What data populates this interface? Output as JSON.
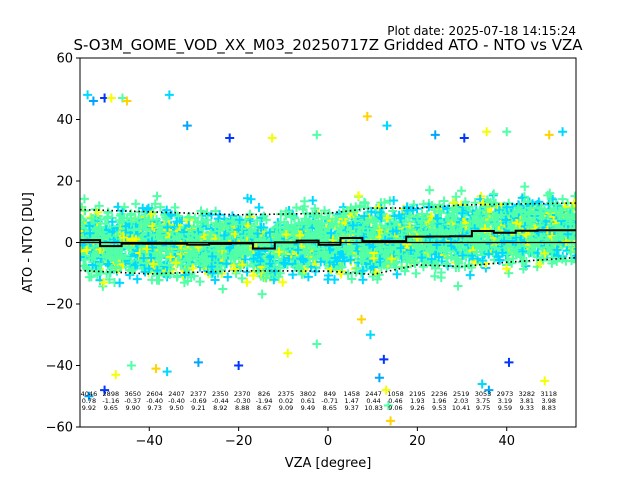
{
  "plot_date": "Plot date: 2025-07-18 14:15:24",
  "chart_data": {
    "type": "scatter",
    "title": "S-O3M_GOME_VOD_XX_M03_20250717Z Gridded ATO - NTO vs VZA",
    "xlabel": "VZA [degree]",
    "ylabel": "ATO - NTO [DU]",
    "xlim": [
      -55.5,
      55.5
    ],
    "ylim": [
      -60,
      60
    ],
    "x_ticks": [
      -40,
      -20,
      0,
      20,
      40
    ],
    "y_ticks": [
      -60,
      -40,
      -20,
      0,
      20,
      40,
      60
    ],
    "grid": false,
    "marker": "+",
    "colors": {
      "light_green": "#52ffa6",
      "cyan": "#00d9ff",
      "yellow": "#f5ff00",
      "gold": "#ffd200",
      "blue": "#0036ff",
      "light_blue": "#00a4ff",
      "mean_line": "#000000",
      "zero_line": "#000000"
    },
    "bins": {
      "centers": [
        -53.5,
        -48.6,
        -43.7,
        -38.8,
        -33.9,
        -29.0,
        -24.1,
        -19.2,
        -14.3,
        -9.4,
        -4.5,
        0.4,
        5.3,
        10.2,
        15.1,
        20.0,
        24.9,
        29.8,
        34.7,
        39.6,
        44.5,
        49.4,
        53.5
      ],
      "counts": [
        "4046",
        "2898",
        "3650",
        "2604",
        "2407",
        "2377",
        "2350",
        "2370",
        "826",
        "2375",
        "3802",
        "849",
        "1458",
        "2447",
        "1058",
        "2195",
        "2236",
        "2519",
        "3053",
        "2973",
        "3282",
        "3118",
        ""
      ],
      "means": [
        "0.78",
        "-1.16",
        "-0.37",
        "-0.40",
        "-0.40",
        "-0.69",
        "-0.44",
        "-0.30",
        "-1.94",
        "0.02",
        "0.61",
        "-0.71",
        "1.47",
        "0.44",
        "0.46",
        "1.93",
        "1.96",
        "2.03",
        "3.75",
        "3.19",
        "3.81",
        "3.98",
        ""
      ],
      "stds": [
        "9.92",
        "9.65",
        "9.90",
        "9.73",
        "9.50",
        "9.21",
        "8.92",
        "8.88",
        "8.67",
        "9.09",
        "9.49",
        "8.65",
        "9.37",
        "10.83",
        "9.06",
        "9.26",
        "9.53",
        "10.41",
        "9.75",
        "9.59",
        "9.33",
        "8.83",
        ""
      ]
    },
    "mean_line": [
      [
        -55.5,
        0.78
      ],
      [
        -51.0,
        0.78
      ],
      [
        -51.0,
        -1.16
      ],
      [
        -46.2,
        -1.16
      ],
      [
        -46.2,
        -0.37
      ],
      [
        -41.3,
        -0.37
      ],
      [
        -41.3,
        -0.4
      ],
      [
        -31.5,
        -0.4
      ],
      [
        -31.5,
        -0.69
      ],
      [
        -26.6,
        -0.69
      ],
      [
        -26.6,
        -0.44
      ],
      [
        -21.7,
        -0.44
      ],
      [
        -21.7,
        -0.3
      ],
      [
        -16.8,
        -0.3
      ],
      [
        -16.8,
        -1.94
      ],
      [
        -11.9,
        -1.94
      ],
      [
        -11.9,
        0.02
      ],
      [
        -7.0,
        0.02
      ],
      [
        -7.0,
        0.61
      ],
      [
        -2.1,
        0.61
      ],
      [
        -2.1,
        -0.71
      ],
      [
        2.8,
        -0.71
      ],
      [
        2.8,
        1.47
      ],
      [
        7.7,
        1.47
      ],
      [
        7.7,
        0.44
      ],
      [
        12.6,
        0.44
      ],
      [
        12.6,
        0.46
      ],
      [
        17.5,
        0.46
      ],
      [
        17.5,
        1.93
      ],
      [
        22.4,
        1.93
      ],
      [
        22.4,
        1.96
      ],
      [
        27.3,
        1.96
      ],
      [
        27.3,
        2.03
      ],
      [
        32.2,
        2.03
      ],
      [
        32.2,
        3.75
      ],
      [
        37.1,
        3.75
      ],
      [
        37.1,
        3.19
      ],
      [
        42.0,
        3.19
      ],
      [
        42.0,
        3.81
      ],
      [
        46.9,
        3.81
      ],
      [
        46.9,
        3.98
      ],
      [
        55.5,
        3.98
      ]
    ],
    "std_upper": [
      [
        -55.5,
        10.7
      ],
      [
        -40,
        10.0
      ],
      [
        -20,
        9.0
      ],
      [
        0,
        9.5
      ],
      [
        10,
        11.2
      ],
      [
        20,
        11.2
      ],
      [
        30,
        12.2
      ],
      [
        40,
        12.5
      ],
      [
        55.5,
        12.8
      ]
    ],
    "std_lower": [
      [
        -55.5,
        -9.1
      ],
      [
        -40,
        -10.2
      ],
      [
        -20,
        -9.2
      ],
      [
        0,
        -9.3
      ],
      [
        10,
        -10.4
      ],
      [
        20,
        -7.3
      ],
      [
        30,
        -7.8
      ],
      [
        40,
        -6.4
      ],
      [
        55.5,
        -4.9
      ]
    ],
    "outliers": [
      [
        -53.8,
        48
      ],
      [
        -52.5,
        46
      ],
      [
        -50.0,
        47
      ],
      [
        -48.5,
        47
      ],
      [
        -46.0,
        47
      ],
      [
        -45.0,
        46
      ],
      [
        -35.5,
        48
      ],
      [
        -31.5,
        38
      ],
      [
        -22.0,
        34
      ],
      [
        -12.5,
        34
      ],
      [
        -2.5,
        35
      ],
      [
        8.8,
        41
      ],
      [
        13.2,
        38
      ],
      [
        24.0,
        35
      ],
      [
        30.5,
        34
      ],
      [
        35.5,
        36
      ],
      [
        40.0,
        36
      ],
      [
        49.5,
        35
      ],
      [
        52.5,
        36
      ],
      [
        -53.5,
        -50
      ],
      [
        -50.0,
        -48
      ],
      [
        -47.5,
        -43
      ],
      [
        -44.0,
        -40
      ],
      [
        -38.5,
        -41
      ],
      [
        -36.0,
        -42
      ],
      [
        -29.0,
        -39
      ],
      [
        -20.0,
        -40
      ],
      [
        -9.0,
        -36
      ],
      [
        -2.5,
        -33
      ],
      [
        7.5,
        -25
      ],
      [
        9.5,
        -30
      ],
      [
        11.5,
        -44
      ],
      [
        12.5,
        -38
      ],
      [
        13.0,
        -48
      ],
      [
        13.5,
        -53
      ],
      [
        14.0,
        -58
      ],
      [
        34.5,
        -46
      ],
      [
        36.0,
        -48
      ],
      [
        40.5,
        -39
      ],
      [
        48.5,
        -45
      ]
    ]
  }
}
